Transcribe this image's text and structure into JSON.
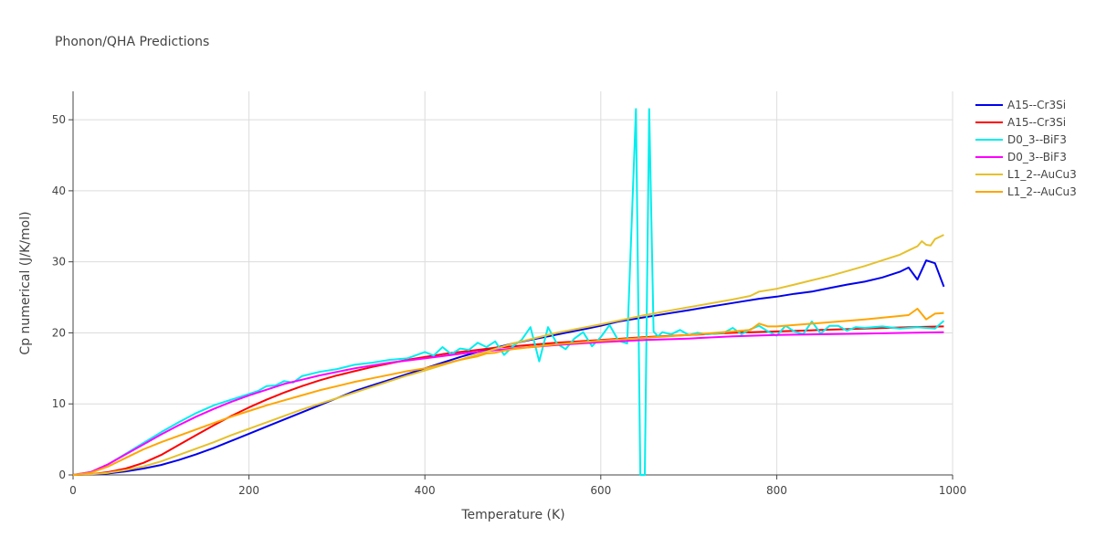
{
  "chart_data": {
    "type": "line",
    "title": "Phonon/QHA Predictions",
    "xlabel": "Temperature (K)",
    "ylabel": "Cp numerical (J/K/mol)",
    "xlim": [
      0,
      1000
    ],
    "ylim": [
      0,
      54
    ],
    "xticks": [
      0,
      200,
      400,
      600,
      800,
      1000
    ],
    "yticks": [
      0,
      10,
      20,
      30,
      40,
      50
    ],
    "grid": true,
    "legend_position": "top-right",
    "series": [
      {
        "name": "A15--Cr3Si",
        "color": "#0000ee",
        "x": [
          0,
          20,
          40,
          60,
          80,
          100,
          120,
          140,
          160,
          180,
          200,
          220,
          240,
          260,
          280,
          300,
          320,
          340,
          360,
          380,
          400,
          420,
          440,
          460,
          480,
          500,
          520,
          540,
          560,
          580,
          600,
          620,
          640,
          660,
          680,
          700,
          720,
          740,
          760,
          780,
          800,
          820,
          840,
          860,
          880,
          900,
          920,
          940,
          950,
          960,
          970,
          980,
          990
        ],
        "y": [
          0,
          0.05,
          0.2,
          0.5,
          0.9,
          1.4,
          2.1,
          2.9,
          3.8,
          4.8,
          5.8,
          6.8,
          7.8,
          8.8,
          9.8,
          10.8,
          11.8,
          12.6,
          13.4,
          14.2,
          15.0,
          15.8,
          16.6,
          17.3,
          17.9,
          18.5,
          19.0,
          19.5,
          20.0,
          20.5,
          21.0,
          21.6,
          22.0,
          22.4,
          22.8,
          23.2,
          23.6,
          24.0,
          24.4,
          24.8,
          25.1,
          25.5,
          25.8,
          26.3,
          26.8,
          27.2,
          27.8,
          28.6,
          29.2,
          27.5,
          30.2,
          29.8,
          26.5
        ]
      },
      {
        "name": "A15--Cr3Si",
        "color": "#ff0000",
        "x": [
          0,
          20,
          40,
          60,
          80,
          100,
          120,
          140,
          160,
          180,
          200,
          220,
          240,
          260,
          280,
          300,
          320,
          340,
          360,
          380,
          400,
          420,
          440,
          460,
          480,
          500,
          550,
          600,
          650,
          700,
          750,
          800,
          850,
          900,
          950,
          990
        ],
        "y": [
          0,
          0.1,
          0.4,
          0.9,
          1.7,
          2.8,
          4.2,
          5.6,
          7.0,
          8.3,
          9.5,
          10.6,
          11.6,
          12.5,
          13.3,
          14.0,
          14.6,
          15.2,
          15.7,
          16.2,
          16.6,
          17.0,
          17.3,
          17.6,
          17.9,
          18.1,
          18.6,
          19.0,
          19.4,
          19.7,
          20.0,
          20.2,
          20.4,
          20.6,
          20.8,
          20.9
        ]
      },
      {
        "name": "D0_3--BiF3",
        "color": "#00eeee",
        "x": [
          0,
          20,
          40,
          60,
          80,
          100,
          120,
          140,
          160,
          180,
          200,
          210,
          220,
          230,
          240,
          250,
          260,
          280,
          300,
          320,
          340,
          360,
          380,
          400,
          410,
          420,
          430,
          440,
          450,
          460,
          470,
          480,
          490,
          500,
          510,
          520,
          530,
          540,
          550,
          560,
          570,
          580,
          590,
          600,
          610,
          620,
          630,
          640,
          645,
          650,
          655,
          660,
          665,
          670,
          680,
          690,
          700,
          710,
          720,
          740,
          750,
          760,
          770,
          780,
          790,
          800,
          810,
          820,
          830,
          840,
          850,
          860,
          870,
          880,
          890,
          900,
          920,
          940,
          960,
          980,
          990
        ],
        "y": [
          0,
          0.4,
          1.5,
          3.0,
          4.5,
          6.0,
          7.4,
          8.7,
          9.8,
          10.6,
          11.4,
          11.8,
          12.5,
          12.6,
          13.2,
          13.0,
          13.9,
          14.5,
          14.9,
          15.5,
          15.8,
          16.2,
          16.4,
          17.3,
          16.8,
          18.0,
          17.0,
          17.8,
          17.6,
          18.6,
          18.0,
          18.8,
          16.9,
          18.1,
          19.0,
          20.8,
          16.0,
          20.8,
          18.5,
          17.7,
          19.2,
          20.1,
          18.1,
          19.4,
          21.1,
          18.9,
          18.5,
          51.5,
          0,
          0,
          51.5,
          20.2,
          19.5,
          20.1,
          19.8,
          20.4,
          19.7,
          20.0,
          19.8,
          20.0,
          20.7,
          19.8,
          20.5,
          21.0,
          20.2,
          19.6,
          21.0,
          20.2,
          19.8,
          21.6,
          19.9,
          21.0,
          21.0,
          20.3,
          20.8,
          20.7,
          20.9,
          20.6,
          20.8,
          20.6,
          21.7
        ]
      },
      {
        "name": "D0_3--BiF3",
        "color": "#ff00ff",
        "x": [
          0,
          20,
          40,
          60,
          80,
          100,
          120,
          140,
          160,
          180,
          200,
          220,
          240,
          260,
          280,
          300,
          320,
          340,
          360,
          380,
          400,
          450,
          500,
          550,
          600,
          650,
          700,
          750,
          800,
          850,
          900,
          950,
          990
        ],
        "y": [
          0,
          0.4,
          1.5,
          2.9,
          4.3,
          5.7,
          7.0,
          8.2,
          9.3,
          10.3,
          11.2,
          12.0,
          12.8,
          13.4,
          14.0,
          14.5,
          15.0,
          15.4,
          15.8,
          16.1,
          16.4,
          17.2,
          17.8,
          18.3,
          18.7,
          19.0,
          19.2,
          19.5,
          19.7,
          19.8,
          19.9,
          20.0,
          20.1
        ]
      },
      {
        "name": "L1_2--AuCu3",
        "color": "#e5c12c",
        "x": [
          0,
          20,
          40,
          60,
          80,
          100,
          120,
          140,
          160,
          180,
          200,
          220,
          240,
          260,
          280,
          300,
          320,
          340,
          360,
          380,
          400,
          450,
          500,
          550,
          600,
          650,
          700,
          750,
          770,
          780,
          800,
          820,
          840,
          860,
          880,
          900,
          920,
          940,
          950,
          960,
          965,
          970,
          975,
          980,
          990
        ],
        "y": [
          0,
          0.1,
          0.3,
          0.7,
          1.2,
          1.9,
          2.8,
          3.7,
          4.6,
          5.6,
          6.5,
          7.4,
          8.3,
          9.2,
          10.0,
          10.8,
          11.6,
          12.4,
          13.2,
          14.0,
          14.7,
          16.6,
          18.5,
          20.0,
          21.2,
          22.5,
          23.6,
          24.7,
          25.2,
          25.8,
          26.2,
          26.8,
          27.4,
          28.0,
          28.7,
          29.4,
          30.2,
          31.0,
          31.6,
          32.2,
          32.9,
          32.4,
          32.3,
          33.2,
          33.8
        ]
      },
      {
        "name": "L1_2--AuCu3",
        "color": "#ffa500",
        "x": [
          0,
          20,
          40,
          60,
          80,
          100,
          120,
          140,
          160,
          180,
          200,
          220,
          240,
          260,
          280,
          300,
          320,
          340,
          360,
          380,
          400,
          420,
          440,
          460,
          470,
          480,
          490,
          500,
          550,
          600,
          650,
          700,
          750,
          770,
          780,
          790,
          800,
          850,
          900,
          950,
          960,
          970,
          980,
          990
        ],
        "y": [
          0,
          0.3,
          1.2,
          2.4,
          3.6,
          4.6,
          5.5,
          6.4,
          7.3,
          8.2,
          9.0,
          9.8,
          10.5,
          11.2,
          11.9,
          12.5,
          13.1,
          13.6,
          14.1,
          14.6,
          15.0,
          15.6,
          16.2,
          16.7,
          17.1,
          17.2,
          17.5,
          17.7,
          18.4,
          18.9,
          19.3,
          19.7,
          20.2,
          20.4,
          21.3,
          20.9,
          20.9,
          21.4,
          21.9,
          22.5,
          23.4,
          21.9,
          22.7,
          22.8
        ]
      }
    ]
  }
}
